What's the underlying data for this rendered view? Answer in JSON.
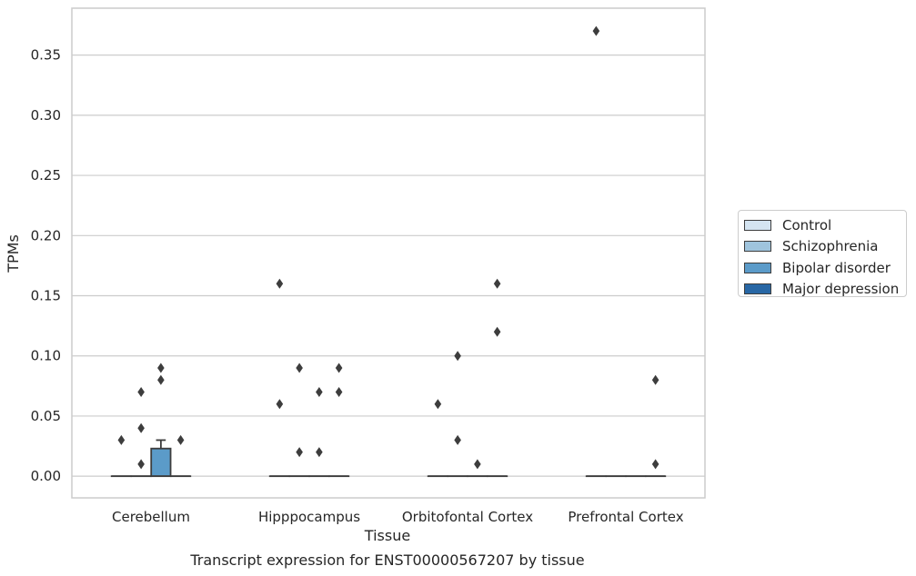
{
  "caption": "Transcript expression for ENST00000567207 by tissue",
  "chart_data": {
    "type": "box",
    "xlabel": "Tissue",
    "ylabel": "TPMs",
    "ylim": [
      -0.018,
      0.389
    ],
    "yticks": [
      0.0,
      0.05,
      0.1,
      0.15,
      0.2,
      0.25,
      0.3,
      0.35
    ],
    "ytick_labels": [
      "0.00",
      "0.05",
      "0.10",
      "0.15",
      "0.20",
      "0.25",
      "0.30",
      "0.35"
    ],
    "grid": "horizontal",
    "legend_position": "right",
    "categories": [
      "Cerebellum",
      "Hipppocampus",
      "Orbitofontal Cortex",
      "Prefrontal Cortex"
    ],
    "series": [
      {
        "name": "Control",
        "color": "#d4e4f1",
        "boxes": [
          {
            "q1": 0,
            "median": 0,
            "q3": 0,
            "whisker_low": 0,
            "whisker_high": 0,
            "outliers": [
              0.03
            ]
          },
          {
            "q1": 0,
            "median": 0,
            "q3": 0,
            "whisker_low": 0,
            "whisker_high": 0,
            "outliers": [
              0.06,
              0.16
            ]
          },
          {
            "q1": 0,
            "median": 0,
            "q3": 0,
            "whisker_low": 0,
            "whisker_high": 0,
            "outliers": [
              0.06
            ]
          },
          {
            "q1": 0,
            "median": 0,
            "q3": 0,
            "whisker_low": 0,
            "whisker_high": 0,
            "outliers": [
              0.37
            ]
          }
        ]
      },
      {
        "name": "Schizophrenia",
        "color": "#9fc4dd",
        "boxes": [
          {
            "q1": 0,
            "median": 0,
            "q3": 0,
            "whisker_low": 0,
            "whisker_high": 0,
            "outliers": [
              0.01,
              0.04,
              0.07
            ]
          },
          {
            "q1": 0,
            "median": 0,
            "q3": 0,
            "whisker_low": 0,
            "whisker_high": 0,
            "outliers": [
              0.02,
              0.09
            ]
          },
          {
            "q1": 0,
            "median": 0,
            "q3": 0,
            "whisker_low": 0,
            "whisker_high": 0,
            "outliers": [
              0.03,
              0.1
            ]
          },
          {
            "q1": 0,
            "median": 0,
            "q3": 0,
            "whisker_low": 0,
            "whisker_high": 0,
            "outliers": []
          }
        ]
      },
      {
        "name": "Bipolar disorder",
        "color": "#5b9bc9",
        "boxes": [
          {
            "q1": 0,
            "median": 0,
            "q3": 0.023,
            "whisker_low": 0,
            "whisker_high": 0.03,
            "outliers": [
              0.08,
              0.09
            ]
          },
          {
            "q1": 0,
            "median": 0,
            "q3": 0,
            "whisker_low": 0,
            "whisker_high": 0,
            "outliers": [
              0.02,
              0.07
            ]
          },
          {
            "q1": 0,
            "median": 0,
            "q3": 0,
            "whisker_low": 0,
            "whisker_high": 0,
            "outliers": [
              0.01
            ]
          },
          {
            "q1": 0,
            "median": 0,
            "q3": 0,
            "whisker_low": 0,
            "whisker_high": 0,
            "outliers": []
          }
        ]
      },
      {
        "name": "Major depression",
        "color": "#2867a5",
        "boxes": [
          {
            "q1": 0,
            "median": 0,
            "q3": 0,
            "whisker_low": 0,
            "whisker_high": 0,
            "outliers": [
              0.03
            ]
          },
          {
            "q1": 0,
            "median": 0,
            "q3": 0,
            "whisker_low": 0,
            "whisker_high": 0,
            "outliers": [
              0.07,
              0.09
            ]
          },
          {
            "q1": 0,
            "median": 0,
            "q3": 0,
            "whisker_low": 0,
            "whisker_high": 0,
            "outliers": [
              0.12,
              0.16
            ]
          },
          {
            "q1": 0,
            "median": 0,
            "q3": 0,
            "whisker_low": 0,
            "whisker_high": 0,
            "outliers": [
              0.01,
              0.08
            ]
          }
        ]
      }
    ]
  }
}
